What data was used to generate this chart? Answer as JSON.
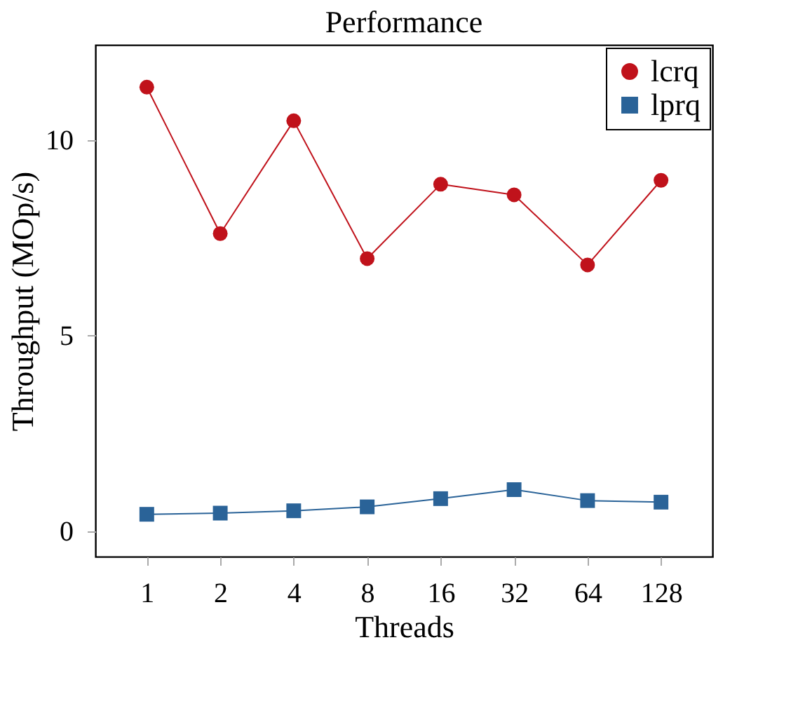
{
  "chart_data": {
    "type": "line",
    "title": "Performance",
    "xlabel": "Threads",
    "ylabel": "Throughput (MOp/s)",
    "categories": [
      "1",
      "2",
      "4",
      "8",
      "16",
      "32",
      "64",
      "128"
    ],
    "series": [
      {
        "name": "lcrq",
        "color": "#c0121b",
        "marker": "circle",
        "values": [
          11.35,
          7.61,
          10.49,
          6.97,
          8.87,
          8.6,
          6.81,
          8.97
        ]
      },
      {
        "name": "lprq",
        "color": "#2a6398",
        "marker": "square",
        "values": [
          0.44,
          0.47,
          0.53,
          0.63,
          0.84,
          1.07,
          0.79,
          0.75
        ]
      }
    ],
    "ylim": [
      -0.64,
      12.43
    ],
    "yticks": [
      0,
      5,
      10
    ],
    "grid": false,
    "legend": "top right",
    "line_style": "solid"
  }
}
